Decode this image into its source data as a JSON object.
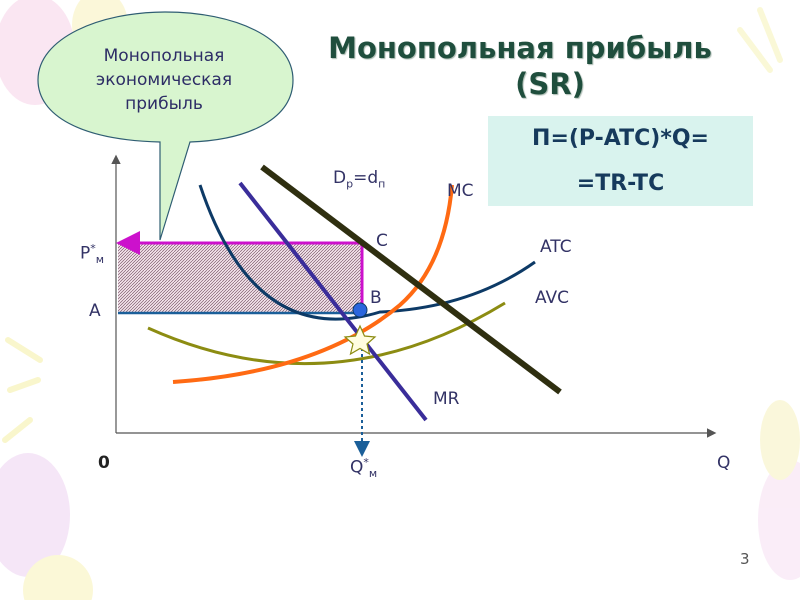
{
  "slide": {
    "title_line1": "Монопольная прибыль",
    "title_line2": "(SR)",
    "formula_line1": "П=(P-ATC)*Q=",
    "formula_line2": "=TR-TC",
    "callout_line1": "Монопольная",
    "callout_line2": "экономическая",
    "callout_line3": "прибыль",
    "page_number": "3"
  },
  "diagram": {
    "labels": {
      "demand_main": "D",
      "demand_sub_p": "р",
      "demand_eq": "=d",
      "demand_sub_n": "п",
      "mc": "MC",
      "atc": "ATC",
      "avc": "AVC",
      "mr": "MR",
      "point_c": "C",
      "point_b": "B",
      "price_main": "P",
      "price_sup": "*",
      "price_sub": "м",
      "a_label": "A",
      "zero": "0",
      "q_axis": "Q",
      "qty_main": "Q",
      "qty_sup": "*",
      "qty_sub": "м"
    },
    "colors": {
      "demand": "#2f2f10",
      "mc": "#ff6a13",
      "atc": "#0d3a66",
      "avc": "#8c8c12",
      "mr": "#3a2d9a",
      "profit_border": "#cc11cc",
      "formula_bg": "#d9f3ee",
      "callout_bg": "#d8f5cf"
    }
  }
}
